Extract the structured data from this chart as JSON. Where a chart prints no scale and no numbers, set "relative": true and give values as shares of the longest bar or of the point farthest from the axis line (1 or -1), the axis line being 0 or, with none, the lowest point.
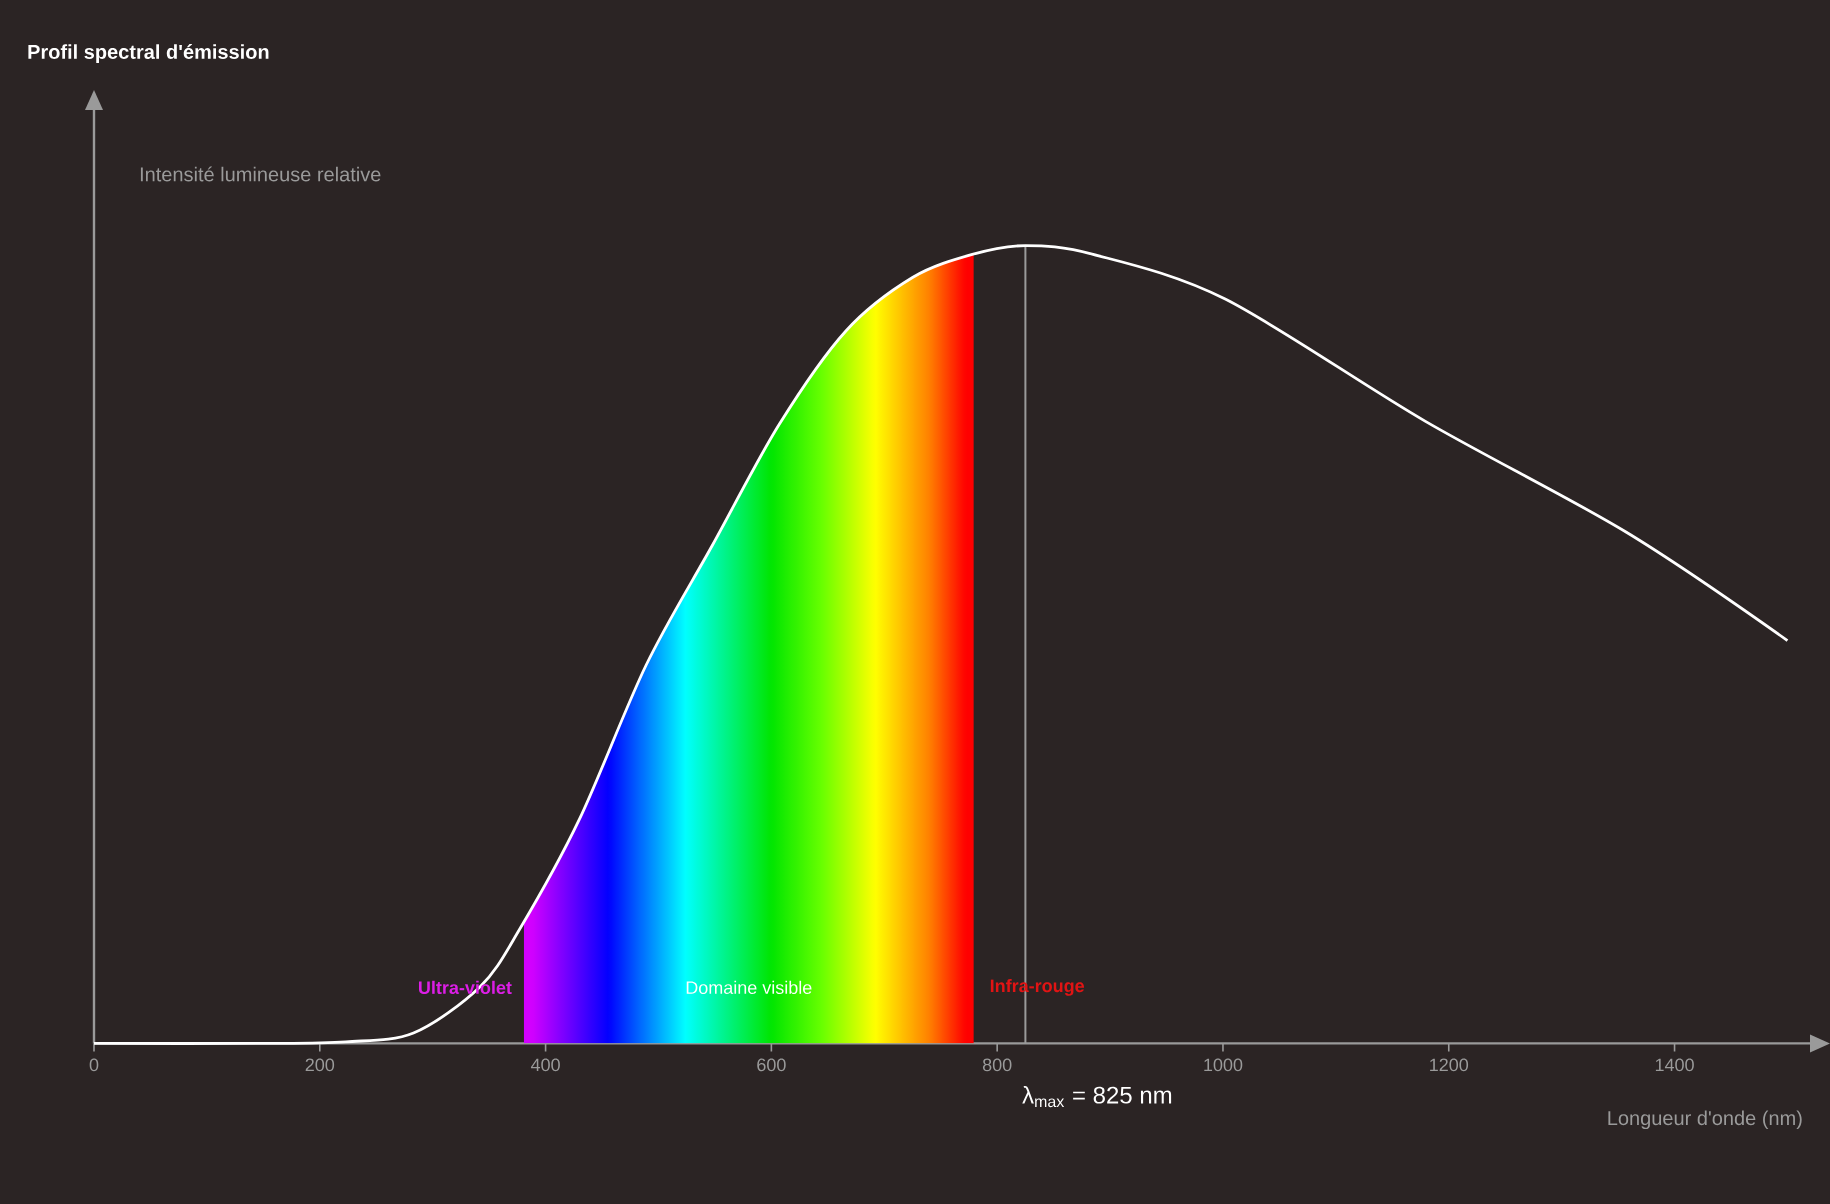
{
  "chart_data": {
    "type": "line",
    "title": "Profil spectral d'émission",
    "xlabel": "Longueur d'onde (nm)",
    "ylabel": "Intensité lumineuse relative",
    "relative": true,
    "color": "#ffffff",
    "x": [
      0,
      150,
      223,
      283,
      342,
      377,
      430,
      489,
      548,
      607,
      666,
      725,
      778,
      825,
      885,
      1002,
      1179,
      1357,
      1500
    ],
    "values": [
      0,
      0,
      0.002,
      0.013,
      0.071,
      0.143,
      0.281,
      0.474,
      0.625,
      0.776,
      0.893,
      0.96,
      0.989,
      1,
      0.989,
      0.933,
      0.78,
      0.641,
      0.505
    ],
    "xlim": [
      0,
      1520
    ],
    "xticks": [
      0,
      200,
      400,
      600,
      800,
      1000,
      1200,
      1400
    ],
    "bands": [
      {
        "axis": "x",
        "from": 380,
        "to": 780,
        "label": "Domaine visible"
      }
    ],
    "ref_lines": [
      {
        "axis": "x",
        "value": 825,
        "label": "λ$_{max}$ = 825 nm",
        "color": "#9a9a9a"
      }
    ],
    "annotations": [
      "Ultra-violet",
      "Infra-rouge"
    ]
  }
}
